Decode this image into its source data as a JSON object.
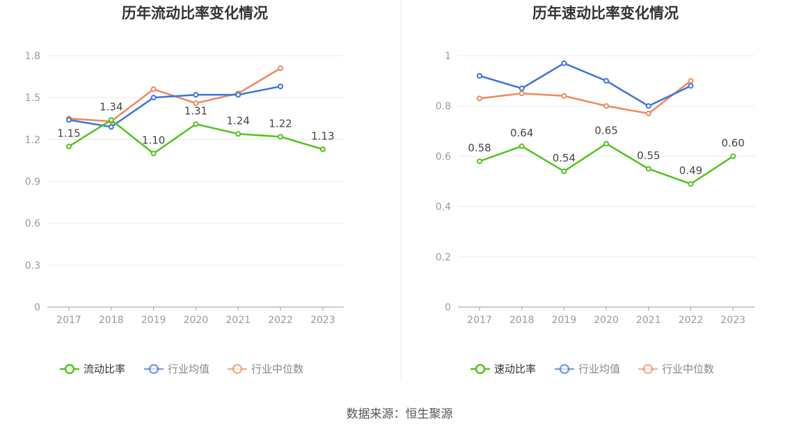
{
  "colors": {
    "primary": "#52c41a",
    "avg": "#3b73e0",
    "median": "#f0875c",
    "legend_primary_text": "#333333",
    "legend_other_text": "#888888"
  },
  "source": "数据来源：恒生聚源",
  "chart_data": [
    {
      "type": "line",
      "title": "历年流动比率变化情况",
      "categories": [
        "2017",
        "2018",
        "2019",
        "2020",
        "2021",
        "2022",
        "2023"
      ],
      "ylim": [
        0,
        1.8
      ],
      "yticks": [
        "0",
        "0.3",
        "0.6",
        "0.9",
        "1.2",
        "1.5",
        "1.8"
      ],
      "grid": true,
      "legend_position": "bottom",
      "series": [
        {
          "name": "流动比率",
          "values": [
            1.15,
            1.34,
            1.1,
            1.31,
            1.24,
            1.22,
            1.13
          ],
          "labels": [
            "1.15",
            "1.34",
            "1.10",
            "1.31",
            "1.24",
            "1.22",
            "1.13"
          ]
        },
        {
          "name": "行业均值",
          "values": [
            1.34,
            1.29,
            1.5,
            1.52,
            1.52,
            1.58,
            null
          ]
        },
        {
          "name": "行业中位数",
          "values": [
            1.35,
            1.33,
            1.56,
            1.46,
            1.53,
            1.71,
            null
          ]
        }
      ]
    },
    {
      "type": "line",
      "title": "历年速动比率变化情况",
      "categories": [
        "2017",
        "2018",
        "2019",
        "2020",
        "2021",
        "2022",
        "2023"
      ],
      "ylim": [
        0,
        1
      ],
      "yticks": [
        "0",
        "0.2",
        "0.4",
        "0.6",
        "0.8",
        "1"
      ],
      "grid": true,
      "legend_position": "bottom",
      "series": [
        {
          "name": "速动比率",
          "values": [
            0.58,
            0.64,
            0.54,
            0.65,
            0.55,
            0.49,
            0.6
          ],
          "labels": [
            "0.58",
            "0.64",
            "0.54",
            "0.65",
            "0.55",
            "0.49",
            "0.60"
          ]
        },
        {
          "name": "行业均值",
          "values": [
            0.92,
            0.87,
            0.97,
            0.9,
            0.8,
            0.88,
            null
          ]
        },
        {
          "name": "行业中位数",
          "values": [
            0.83,
            0.85,
            0.84,
            0.8,
            0.77,
            0.9,
            null
          ]
        }
      ]
    }
  ]
}
